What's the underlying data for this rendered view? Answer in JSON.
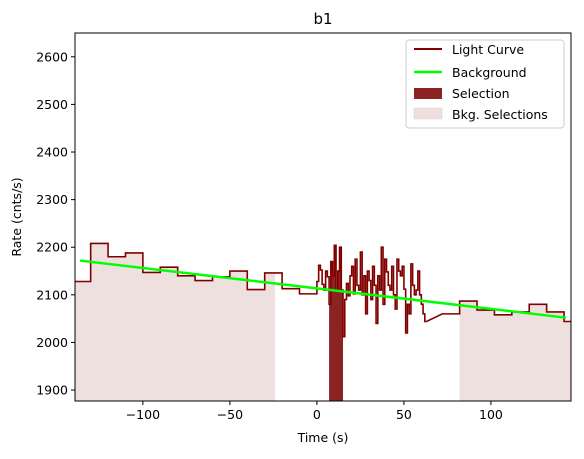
{
  "chart_data": {
    "type": "line",
    "title": "b1",
    "xlabel": "Time (s)",
    "ylabel": "Rate (cnts/s)",
    "xlim": [
      -139,
      146
    ],
    "ylim": [
      1877,
      2650
    ],
    "xticks": [
      -100,
      -50,
      0,
      50,
      100
    ],
    "yticks": [
      1900,
      2000,
      2100,
      2200,
      2300,
      2400,
      2500,
      2600
    ],
    "xtick_labels": [
      "−100",
      "−50",
      "0",
      "50",
      "100"
    ],
    "ytick_labels": [
      "1900",
      "2000",
      "2100",
      "2200",
      "2300",
      "2400",
      "2500",
      "2600"
    ],
    "grid": false,
    "legend_position": "top-right",
    "legend": [
      "Light Curve",
      "Background",
      "Selection",
      "Bkg. Selections"
    ],
    "colors": {
      "light_curve": "#800000",
      "background": "#00ff00",
      "selection": "#8b2323",
      "bkg_selection": "#efe0e0"
    },
    "light_curve": {
      "coarse_bins": [
        {
          "x0": -139,
          "x1": -130,
          "y": 2128
        },
        {
          "x0": -130,
          "x1": -120,
          "y": 2208
        },
        {
          "x0": -120,
          "x1": -110,
          "y": 2180
        },
        {
          "x0": -110,
          "x1": -100,
          "y": 2188
        },
        {
          "x0": -100,
          "x1": -90,
          "y": 2147
        },
        {
          "x0": -90,
          "x1": -80,
          "y": 2158
        },
        {
          "x0": -80,
          "x1": -70,
          "y": 2140
        },
        {
          "x0": -70,
          "x1": -60,
          "y": 2130
        },
        {
          "x0": -60,
          "x1": -50,
          "y": 2138
        },
        {
          "x0": -50,
          "x1": -40,
          "y": 2150
        },
        {
          "x0": -40,
          "x1": -30,
          "y": 2111
        },
        {
          "x0": -30,
          "x1": -20,
          "y": 2146
        },
        {
          "x0": -20,
          "x1": -10,
          "y": 2113
        },
        {
          "x0": -10,
          "x1": 0,
          "y": 2102
        },
        {
          "x0": 72,
          "x1": 82,
          "y": 2060
        },
        {
          "x0": 82,
          "x1": 92,
          "y": 2087
        },
        {
          "x0": 92,
          "x1": 102,
          "y": 2068
        },
        {
          "x0": 102,
          "x1": 112,
          "y": 2058
        },
        {
          "x0": 112,
          "x1": 122,
          "y": 2064
        },
        {
          "x0": 122,
          "x1": 132,
          "y": 2080
        },
        {
          "x0": 132,
          "x1": 142,
          "y": 2064
        },
        {
          "x0": 142,
          "x1": 146,
          "y": 2044
        }
      ],
      "fine_x0": 0,
      "fine_dx": 1,
      "fine_values": [
        2128,
        2162,
        2152,
        2122,
        2110,
        2150,
        2138,
        2080,
        2170,
        2140,
        2204,
        2110,
        2150,
        2200,
        2110,
        2012,
        2090,
        2124,
        2098,
        2140,
        2160,
        2102,
        2175,
        2120,
        2110,
        2190,
        2100,
        2140,
        2060,
        2150,
        2130,
        2090,
        2160,
        2120,
        2040,
        2140,
        2110,
        2200,
        2080,
        2175,
        2148,
        2120,
        2110,
        2160,
        2100,
        2070,
        2175,
        2150,
        2140,
        2160,
        2112,
        2020,
        2080,
        2060,
        2165,
        2120,
        2100,
        2110,
        2150,
        2100,
        2080,
        2060,
        2044
      ]
    },
    "background": {
      "x": [
        -139,
        146
      ],
      "y": [
        2172,
        2052
      ]
    },
    "selection": {
      "x0": 7,
      "x1": 15
    },
    "bkg_selections": [
      [
        -139,
        -24
      ],
      [
        82,
        146
      ]
    ]
  }
}
